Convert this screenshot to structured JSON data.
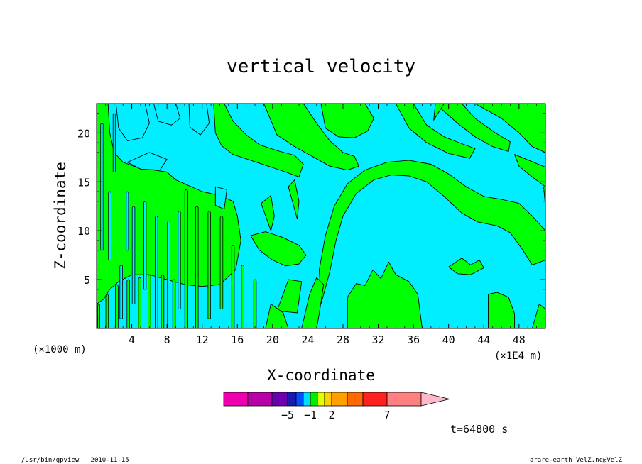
{
  "chart_data": {
    "type": "heatmap",
    "title": "vertical velocity",
    "xlabel": "X-coordinate",
    "ylabel": "Z-coordinate",
    "x_unit": "(×1E4 m)",
    "y_unit": "(×1000 m)",
    "xlim": [
      0,
      51
    ],
    "ylim": [
      0,
      23
    ],
    "x_ticks": [
      4,
      8,
      12,
      16,
      20,
      24,
      28,
      32,
      36,
      40,
      44,
      48
    ],
    "y_ticks": [
      5,
      10,
      15,
      20
    ],
    "contour_levels": [
      -1,
      0,
      1
    ],
    "region_colors": {
      "weak_updraft": "#00ff00",
      "weak_downdraft": "#00eeff"
    },
    "colorbar": {
      "colors": [
        "#ee00b0",
        "#b800a8",
        "#6a00b0",
        "#1a1ab0",
        "#0050ff",
        "#00ddff",
        "#00ee00",
        "#e6ff00",
        "#ffd000",
        "#ffa000",
        "#ff6a00",
        "#ff2020",
        "#ff8080"
      ],
      "extend_color": "#ffb8c8",
      "labels": [
        {
          "text": "−5",
          "after_bin": 2
        },
        {
          "text": "−1",
          "after_bin": 5
        },
        {
          "text": "2",
          "after_bin": 8
        },
        {
          "text": "7",
          "after_bin": 11
        }
      ]
    },
    "time_label": "t=64800 s",
    "footer_left": "/usr/bin/gpview   2010-11-15",
    "footer_right": "arare-earth_VelZ.nc@VelZ",
    "features": [
      {
        "name": "green",
        "kind": "poly",
        "pts": [
          [
            0,
            23
          ],
          [
            1.3,
            23
          ],
          [
            1.5,
            20
          ],
          [
            2,
            18
          ],
          [
            3,
            17
          ],
          [
            4.5,
            16.5
          ],
          [
            6.5,
            16.2
          ],
          [
            8,
            16
          ],
          [
            9,
            15.2
          ],
          [
            10.5,
            14.6
          ],
          [
            12,
            14
          ],
          [
            14,
            13.6
          ],
          [
            15.5,
            13
          ],
          [
            16,
            11.5
          ],
          [
            16.4,
            9
          ],
          [
            15.8,
            6
          ],
          [
            14,
            4.5
          ],
          [
            12,
            4.3
          ],
          [
            10,
            4.5
          ],
          [
            8,
            5
          ],
          [
            6,
            5.5
          ],
          [
            4,
            5.5
          ],
          [
            2.5,
            4.8
          ],
          [
            1.5,
            4
          ],
          [
            0.8,
            3
          ],
          [
            0,
            2.5
          ]
        ]
      },
      {
        "name": "green",
        "kind": "poly",
        "pts": [
          [
            13.3,
            23
          ],
          [
            14.5,
            23
          ],
          [
            15.5,
            21.2
          ],
          [
            17,
            19.8
          ],
          [
            18.5,
            18.8
          ],
          [
            20.5,
            18.2
          ],
          [
            22.5,
            17.7
          ],
          [
            23.5,
            16.8
          ],
          [
            23,
            15.5
          ],
          [
            21.5,
            16
          ],
          [
            19.5,
            16.6
          ],
          [
            17.5,
            17.2
          ],
          [
            15.5,
            17.8
          ],
          [
            14.2,
            18.7
          ],
          [
            13.5,
            20
          ]
        ]
      },
      {
        "name": "green",
        "kind": "poly",
        "pts": [
          [
            19,
            23
          ],
          [
            23.5,
            23
          ],
          [
            25,
            21
          ],
          [
            26.5,
            19.2
          ],
          [
            28,
            18
          ],
          [
            29.3,
            17.6
          ],
          [
            29.8,
            16.6
          ],
          [
            28.5,
            16.2
          ],
          [
            26.5,
            16.6
          ],
          [
            24.5,
            17.6
          ],
          [
            22.5,
            18.6
          ],
          [
            20.5,
            19.8
          ]
        ]
      },
      {
        "name": "green",
        "kind": "poly",
        "pts": [
          [
            25.5,
            23
          ],
          [
            30.5,
            23
          ],
          [
            31.5,
            21.5
          ],
          [
            30.8,
            20.2
          ],
          [
            29.3,
            19.5
          ],
          [
            27.5,
            19.6
          ],
          [
            26,
            20.5
          ]
        ]
      },
      {
        "name": "green",
        "kind": "poly",
        "pts": [
          [
            34,
            23
          ],
          [
            36,
            23
          ],
          [
            37.5,
            20.8
          ],
          [
            39.5,
            19.6
          ],
          [
            41.5,
            18.9
          ],
          [
            43,
            18.4
          ],
          [
            42.4,
            17.4
          ],
          [
            40,
            17.9
          ],
          [
            37.5,
            19
          ],
          [
            35.5,
            20.5
          ]
        ]
      },
      {
        "name": "green",
        "kind": "poly",
        "pts": [
          [
            38.5,
            23
          ],
          [
            41.5,
            23
          ],
          [
            43,
            21.5
          ],
          [
            45.3,
            20
          ],
          [
            47,
            19.1
          ],
          [
            46.8,
            18.1
          ],
          [
            45,
            18.6
          ],
          [
            43,
            19.6
          ],
          [
            41,
            21
          ]
        ]
      },
      {
        "name": "green",
        "kind": "poly",
        "pts": [
          [
            43,
            23
          ],
          [
            51,
            23
          ],
          [
            51,
            18
          ],
          [
            49.5,
            18.6
          ],
          [
            48,
            20
          ],
          [
            46,
            21.5
          ]
        ]
      },
      {
        "name": "green",
        "kind": "poly",
        "pts": [
          [
            47.5,
            17.8
          ],
          [
            51,
            16.5
          ],
          [
            51,
            14.5
          ],
          [
            49.5,
            15.5
          ],
          [
            48,
            16.6
          ]
        ]
      },
      {
        "name": "green",
        "kind": "poly",
        "pts": [
          [
            38.5,
            23
          ],
          [
            39.5,
            23
          ],
          [
            38.3,
            21.3
          ]
        ]
      },
      {
        "name": "green",
        "kind": "poly",
        "pts": [
          [
            25.5,
            2.5
          ],
          [
            26.5,
            5.8
          ],
          [
            27.2,
            9
          ],
          [
            28,
            11.5
          ],
          [
            29.5,
            13.8
          ],
          [
            31.5,
            15.2
          ],
          [
            33.5,
            15.7
          ],
          [
            35.5,
            15.6
          ],
          [
            37.5,
            15
          ],
          [
            39.5,
            13.5
          ],
          [
            41.5,
            11.8
          ],
          [
            43.3,
            10.9
          ],
          [
            45.5,
            10.5
          ],
          [
            47,
            9.8
          ],
          [
            48.3,
            8.2
          ],
          [
            49.5,
            6.5
          ],
          [
            51,
            7
          ],
          [
            51,
            10
          ],
          [
            49.5,
            11.5
          ],
          [
            48,
            12.8
          ],
          [
            46,
            13.2
          ],
          [
            44,
            13.5
          ],
          [
            42,
            14.5
          ],
          [
            40,
            15.8
          ],
          [
            38,
            16.8
          ],
          [
            35.5,
            17.2
          ],
          [
            33,
            17
          ],
          [
            30.5,
            16.2
          ],
          [
            28.5,
            14.8
          ],
          [
            27,
            12.5
          ],
          [
            26,
            9.5
          ],
          [
            25.3,
            6
          ]
        ]
      },
      {
        "name": "green",
        "kind": "poly",
        "pts": [
          [
            17.5,
            9.5
          ],
          [
            18.5,
            8
          ],
          [
            20,
            7
          ],
          [
            21.5,
            6.4
          ],
          [
            23,
            6.6
          ],
          [
            23.8,
            7.5
          ],
          [
            23,
            8.5
          ],
          [
            21.2,
            9.3
          ],
          [
            19.2,
            9.9
          ]
        ]
      },
      {
        "name": "green",
        "kind": "poly",
        "pts": [
          [
            18.7,
            12.8
          ],
          [
            19.8,
            13.6
          ],
          [
            20.2,
            11.5
          ],
          [
            19.8,
            10
          ]
        ]
      },
      {
        "name": "green",
        "kind": "poly",
        "pts": [
          [
            21.8,
            14.5
          ],
          [
            22.5,
            15.2
          ],
          [
            23,
            13
          ],
          [
            22.8,
            11.2
          ]
        ]
      },
      {
        "name": "green",
        "kind": "poly",
        "pts": [
          [
            20.5,
            1.8
          ],
          [
            21.8,
            5
          ],
          [
            23.3,
            4.8
          ],
          [
            22.8,
            1.6
          ]
        ]
      },
      {
        "name": "green",
        "kind": "poly",
        "pts": [
          [
            19.2,
            0
          ],
          [
            19.8,
            2.5
          ],
          [
            21.2,
            1.6
          ],
          [
            21.8,
            0
          ]
        ]
      },
      {
        "name": "green",
        "kind": "poly",
        "pts": [
          [
            23.3,
            0
          ],
          [
            24.2,
            3.5
          ],
          [
            25,
            5.2
          ],
          [
            25.8,
            4.5
          ],
          [
            25.3,
            1.5
          ],
          [
            25,
            0
          ]
        ]
      },
      {
        "name": "green",
        "kind": "poly",
        "pts": [
          [
            28.5,
            0
          ],
          [
            28.5,
            3.2
          ],
          [
            29.5,
            4.6
          ],
          [
            30.5,
            4.4
          ],
          [
            31.4,
            6
          ],
          [
            32.3,
            5.1
          ],
          [
            33.2,
            6.8
          ],
          [
            34,
            5.5
          ],
          [
            35.5,
            4.8
          ],
          [
            36.5,
            3.5
          ],
          [
            37,
            0
          ]
        ]
      },
      {
        "name": "green",
        "kind": "poly",
        "pts": [
          [
            44.5,
            0
          ],
          [
            44.5,
            3.5
          ],
          [
            45.5,
            3.7
          ],
          [
            46.8,
            3.2
          ],
          [
            47.5,
            1.5
          ],
          [
            47.5,
            0
          ]
        ]
      },
      {
        "name": "green",
        "kind": "poly",
        "pts": [
          [
            40,
            6.3
          ],
          [
            41.5,
            7.2
          ],
          [
            42.5,
            6.5
          ],
          [
            43.5,
            7
          ],
          [
            44,
            6.2
          ],
          [
            42.5,
            5.5
          ],
          [
            41,
            5.6
          ]
        ]
      },
      {
        "name": "green",
        "kind": "poly",
        "pts": [
          [
            49.5,
            0
          ],
          [
            51,
            0
          ],
          [
            51,
            2
          ],
          [
            50.3,
            2.5
          ]
        ]
      },
      {
        "name": "green",
        "kind": "poly",
        "pts": [
          [
            50.8,
            14.5
          ],
          [
            51,
            14.5
          ],
          [
            51,
            12.5
          ]
        ]
      },
      {
        "name": "green",
        "kind": "stripe",
        "x": 10.2,
        "y0": 0,
        "y1": 14.2,
        "w": 0.35
      },
      {
        "name": "green",
        "kind": "stripe",
        "x": 11.4,
        "y0": 0,
        "y1": 12.5,
        "w": 0.3
      },
      {
        "name": "green",
        "kind": "stripe",
        "x": 12.8,
        "y0": 1,
        "y1": 12,
        "w": 0.28
      },
      {
        "name": "green",
        "kind": "stripe",
        "x": 14.2,
        "y0": 2,
        "y1": 11.5,
        "w": 0.3
      },
      {
        "name": "green",
        "kind": "stripe",
        "x": 15.5,
        "y0": 0,
        "y1": 8.5,
        "w": 0.3
      },
      {
        "name": "green",
        "kind": "stripe",
        "x": 16.6,
        "y0": 0,
        "y1": 6.5,
        "w": 0.3
      },
      {
        "name": "green",
        "kind": "stripe",
        "x": 18,
        "y0": 0,
        "y1": 5,
        "w": 0.3
      },
      {
        "name": "cyan",
        "kind": "poly",
        "pts": [
          [
            2.2,
            23
          ],
          [
            5.5,
            23
          ],
          [
            6,
            21
          ],
          [
            5.2,
            19.5
          ],
          [
            3.5,
            19.2
          ],
          [
            2.5,
            20.5
          ]
        ]
      },
      {
        "name": "cyan",
        "kind": "poly",
        "pts": [
          [
            6.5,
            23
          ],
          [
            9,
            23
          ],
          [
            9.5,
            21.5
          ],
          [
            8.5,
            20.8
          ],
          [
            7,
            21.2
          ]
        ]
      },
      {
        "name": "cyan",
        "kind": "poly",
        "pts": [
          [
            10.5,
            23
          ],
          [
            12.5,
            23
          ],
          [
            12.8,
            21
          ],
          [
            11.8,
            19.8
          ],
          [
            10.6,
            20.6
          ]
        ]
      },
      {
        "name": "cyan",
        "kind": "poly",
        "pts": [
          [
            3.5,
            17
          ],
          [
            6,
            18
          ],
          [
            8,
            17.3
          ],
          [
            7.2,
            16.2
          ],
          [
            5,
            16.3
          ]
        ]
      },
      {
        "name": "cyan",
        "kind": "poly",
        "pts": [
          [
            13.5,
            14.5
          ],
          [
            14.8,
            14.2
          ],
          [
            14.5,
            12.2
          ],
          [
            13.5,
            12.6
          ]
        ]
      },
      {
        "name": "cyan",
        "kind": "stripe",
        "x": 4.2,
        "y0": 2.5,
        "y1": 12.5,
        "w": 0.3
      },
      {
        "name": "cyan",
        "kind": "stripe",
        "x": 5.5,
        "y0": 4,
        "y1": 13,
        "w": 0.28
      },
      {
        "name": "cyan",
        "kind": "stripe",
        "x": 6.8,
        "y0": 0,
        "y1": 11.5,
        "w": 0.3
      },
      {
        "name": "cyan",
        "kind": "stripe",
        "x": 8.2,
        "y0": 0,
        "y1": 11,
        "w": 0.3
      },
      {
        "name": "cyan",
        "kind": "stripe",
        "x": 9.4,
        "y0": 2,
        "y1": 12,
        "w": 0.28
      },
      {
        "name": "cyan",
        "kind": "stripe",
        "x": 2.8,
        "y0": 1,
        "y1": 6.5,
        "w": 0.3
      },
      {
        "name": "cyan",
        "kind": "stripe",
        "x": 1.5,
        "y0": 7,
        "y1": 14,
        "w": 0.3
      },
      {
        "name": "cyan",
        "kind": "stripe",
        "x": 0.6,
        "y0": 8,
        "y1": 21,
        "w": 0.28
      },
      {
        "name": "cyan",
        "kind": "stripe",
        "x": 3.5,
        "y0": 8,
        "y1": 14,
        "w": 0.25
      },
      {
        "name": "cyan",
        "kind": "stripe",
        "x": 2,
        "y0": 16,
        "y1": 22,
        "w": 0.25
      },
      {
        "name": "green",
        "kind": "stripe",
        "x": 0.25,
        "y0": 0,
        "y1": 2.5,
        "w": 0.25
      },
      {
        "name": "green",
        "kind": "stripe",
        "x": 1.2,
        "y0": 0,
        "y1": 3.5,
        "w": 0.3
      },
      {
        "name": "green",
        "kind": "stripe",
        "x": 2.3,
        "y0": 0,
        "y1": 4.5,
        "w": 0.3
      },
      {
        "name": "green",
        "kind": "stripe",
        "x": 3.6,
        "y0": 0,
        "y1": 5,
        "w": 0.3
      },
      {
        "name": "green",
        "kind": "stripe",
        "x": 4.9,
        "y0": 0,
        "y1": 5.2,
        "w": 0.3
      },
      {
        "name": "green",
        "kind": "stripe",
        "x": 6,
        "y0": 0,
        "y1": 5.5,
        "w": 0.3
      },
      {
        "name": "green",
        "kind": "stripe",
        "x": 7.5,
        "y0": 0,
        "y1": 5.5,
        "w": 0.3
      },
      {
        "name": "green",
        "kind": "stripe",
        "x": 8.8,
        "y0": 0,
        "y1": 5,
        "w": 0.3
      }
    ]
  }
}
